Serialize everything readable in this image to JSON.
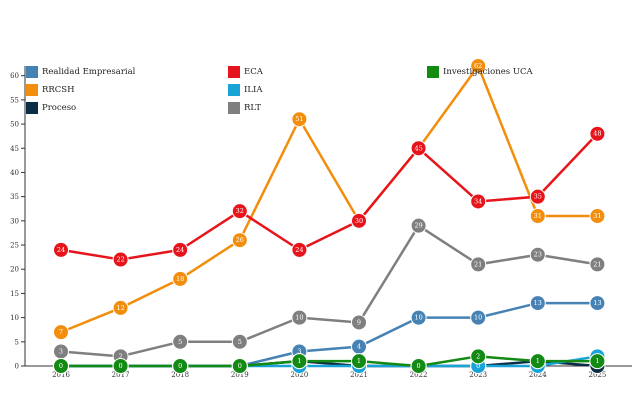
{
  "chart_data": {
    "type": "line",
    "title": "",
    "xlabel": "",
    "ylabel": "",
    "categories": [
      "2016",
      "2017",
      "2018",
      "2019",
      "2020",
      "2021",
      "2022",
      "2023",
      "2024",
      "2025"
    ],
    "ylim": [
      0,
      62
    ],
    "yticks": [
      0,
      5,
      10,
      15,
      20,
      25,
      30,
      35,
      40,
      45,
      50,
      55,
      60
    ],
    "legend_position": "top",
    "series": [
      {
        "name": "Realidad Empresarial",
        "color": "#4682b4",
        "values": [
          0,
          0,
          0,
          0,
          3,
          4,
          10,
          10,
          13,
          13
        ]
      },
      {
        "name": "RRCSH",
        "color": "#f28e0c",
        "values": [
          7,
          12,
          18,
          26,
          51,
          30,
          45,
          62,
          31,
          31
        ]
      },
      {
        "name": "Proceso",
        "color": "#0b2e45",
        "values": [
          0,
          0,
          0,
          0,
          1,
          0,
          0,
          0,
          1,
          0
        ]
      },
      {
        "name": "ECA",
        "color": "#e8141c",
        "values": [
          24,
          22,
          24,
          32,
          24,
          30,
          45,
          34,
          35,
          48
        ]
      },
      {
        "name": "ILIA",
        "color": "#1aa3d6",
        "values": [
          0,
          0,
          0,
          0,
          0,
          0,
          0,
          0,
          0,
          2
        ]
      },
      {
        "name": "RLT",
        "color": "#7f7f7f",
        "values": [
          3,
          2,
          5,
          5,
          10,
          9,
          29,
          21,
          23,
          21
        ]
      },
      {
        "name": "Investigaciones UCA",
        "color": "#138a13",
        "values": [
          0,
          0,
          0,
          0,
          1,
          1,
          0,
          2,
          1,
          1
        ]
      }
    ]
  }
}
